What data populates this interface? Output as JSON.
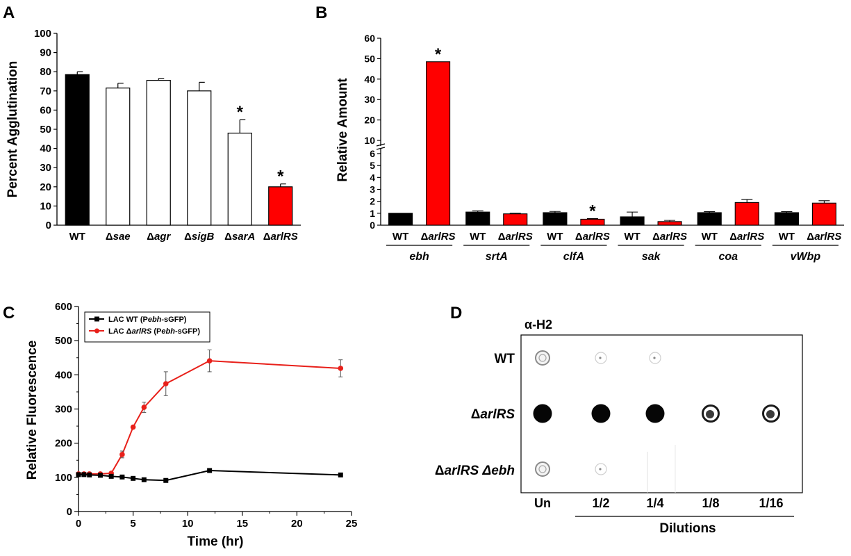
{
  "figure": {
    "panel_labels": [
      "A",
      "B",
      "C",
      "D"
    ]
  },
  "chart_data": [
    {
      "panel": "A",
      "type": "bar",
      "ylabel": "Percent Agglutination",
      "xlabel": "",
      "ylim": [
        0,
        100
      ],
      "yticks": [
        "0",
        "10",
        "20",
        "30",
        "40",
        "50",
        "60",
        "70",
        "80",
        "90",
        "100"
      ],
      "categories": [
        {
          "prefix": "",
          "name": "WT"
        },
        {
          "prefix": "Δ",
          "name": "sae"
        },
        {
          "prefix": "Δ",
          "name": "agr"
        },
        {
          "prefix": "Δ",
          "name": "sigB"
        },
        {
          "prefix": "Δ",
          "name": "sarA"
        },
        {
          "prefix": "Δ",
          "name": "arlRS"
        }
      ],
      "values": [
        78.5,
        71.5,
        75.5,
        70,
        48,
        20
      ],
      "errors": [
        1.5,
        2.5,
        1,
        4.5,
        7,
        1.5
      ],
      "fills": [
        "#000000",
        "#ffffff",
        "#ffffff",
        "#ffffff",
        "#ffffff",
        "#ff0000"
      ],
      "significance": [
        false,
        false,
        false,
        false,
        true,
        true
      ],
      "significance_mark": "*",
      "grid": false
    },
    {
      "panel": "B",
      "type": "bar",
      "ylabel": "Relative Amount",
      "xlabel": "",
      "axis_break": {
        "lower": [
          0,
          6
        ],
        "upper": [
          10,
          60
        ]
      },
      "yticks_lower": [
        "0",
        "1",
        "2",
        "3",
        "4",
        "5",
        "6"
      ],
      "yticks_upper": [
        "10",
        "20",
        "30",
        "40",
        "50",
        "60"
      ],
      "groups": [
        "ebh",
        "srtA",
        "clfA",
        "sak",
        "coa",
        "vWbp"
      ],
      "strain_labels": {
        "wt": "WT",
        "mutant_prefix": "Δ",
        "mutant": "arlRS"
      },
      "series": [
        {
          "name": "WT",
          "color": "#000000",
          "values": [
            1,
            1.1,
            1.05,
            0.7,
            1.05,
            1.05
          ],
          "errors": [
            0,
            0.1,
            0.1,
            0.4,
            0.08,
            0.08
          ]
        },
        {
          "name": "ΔarlRS",
          "color": "#ff0000",
          "values": [
            48.5,
            0.95,
            0.5,
            0.3,
            1.9,
            1.85
          ],
          "errors": [
            0,
            0.05,
            0.05,
            0.1,
            0.25,
            0.2
          ]
        }
      ],
      "significance": [
        {
          "group": 0,
          "series": 1
        },
        {
          "group": 2,
          "series": 1
        }
      ],
      "significance_mark": "*",
      "grid": false
    },
    {
      "panel": "C",
      "type": "line",
      "xlabel": "Time (hr)",
      "ylabel": "Relative Fluorescence",
      "xlim": [
        0,
        25
      ],
      "ylim": [
        0,
        600
      ],
      "xticks": [
        "0",
        "5",
        "10",
        "15",
        "20",
        "25"
      ],
      "yticks": [
        "0",
        "100",
        "200",
        "300",
        "400",
        "500",
        "600"
      ],
      "legend_position": "top-left",
      "series": [
        {
          "name_parts": [
            "LAC WT (P",
            "ebh",
            "-sGFP)"
          ],
          "color": "#000000",
          "marker": "square",
          "x": [
            0,
            0.5,
            1,
            2,
            3,
            4,
            5,
            6,
            8,
            12,
            24
          ],
          "y": [
            108,
            108,
            107,
            106,
            103,
            101,
            97,
            93,
            91,
            120,
            107
          ],
          "err": [
            0,
            0,
            0,
            0,
            0,
            0,
            0,
            0,
            0,
            0,
            0
          ]
        },
        {
          "name_parts": [
            "LAC Δ",
            "arlRS",
            " (P",
            "ebh",
            "-sGFP)"
          ],
          "color": "#e8201a",
          "marker": "circle",
          "x": [
            0,
            0.5,
            1,
            2,
            3,
            4,
            5,
            6,
            8,
            12,
            24
          ],
          "y": [
            110,
            110,
            110,
            110,
            112,
            167,
            247,
            305,
            374,
            441,
            419
          ],
          "err": [
            0,
            0,
            0,
            0,
            0,
            10,
            0,
            15,
            35,
            32,
            25
          ]
        }
      ],
      "grid": false
    },
    {
      "panel": "D",
      "type": "dot_blot",
      "antibody": "α-H2",
      "rows": [
        {
          "prefix": "",
          "label": "WT",
          "suffix": ""
        },
        {
          "prefix": "Δ",
          "label": "arlRS",
          "suffix": ""
        },
        {
          "prefix": "Δ",
          "label": "arlRS",
          "suffix": " Δebh"
        }
      ],
      "columns": [
        "Un",
        "1/2",
        "1/4",
        "1/8",
        "1/16"
      ],
      "column_group_label": "Dilutions",
      "intensity": [
        [
          0.35,
          0.08,
          0.02,
          0.0,
          0.0
        ],
        [
          1.0,
          0.97,
          0.9,
          0.7,
          0.5
        ],
        [
          0.18,
          0.06,
          0.0,
          0.0,
          0.0
        ]
      ]
    }
  ]
}
